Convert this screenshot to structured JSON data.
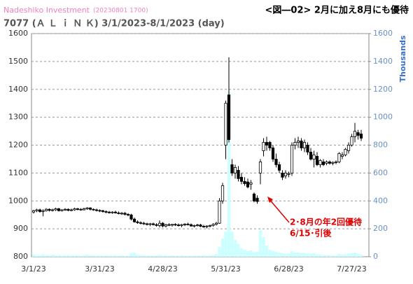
{
  "chart_data": {
    "type": "candlestick",
    "source": "Nadeshiko Investment",
    "timestamp": "(20230801 1700)",
    "title": "<図―02> 2月に加え8月にも優待",
    "subtitle": "7077 (Ａ Ｌ ｉ Ｎ Ｋ) 3/1/2023-8/1/2023 (day)",
    "y2_label": "Thousands",
    "annotation": [
      "2･8月の年2回優待",
      "6/15･引後"
    ],
    "grid": true,
    "ylim": [
      800,
      1600
    ],
    "yticks": [
      800,
      900,
      1000,
      1100,
      1200,
      1300,
      1400,
      1500,
      1600
    ],
    "y2lim": [
      0,
      1600
    ],
    "y2ticks": [
      0,
      200,
      400,
      600,
      800,
      1000,
      1200,
      1400,
      1600
    ],
    "categories": [
      "3/1/23",
      null,
      null,
      null,
      null,
      null,
      null,
      null,
      null,
      null,
      null,
      null,
      null,
      null,
      null,
      null,
      null,
      null,
      null,
      null,
      null,
      "3/31/23",
      null,
      null,
      null,
      null,
      null,
      null,
      null,
      null,
      null,
      null,
      null,
      null,
      null,
      null,
      null,
      null,
      null,
      null,
      null,
      "4/28/23",
      null,
      null,
      null,
      null,
      null,
      null,
      null,
      null,
      null,
      null,
      null,
      null,
      null,
      null,
      null,
      null,
      null,
      null,
      null,
      "5/31/23",
      null,
      null,
      null,
      null,
      null,
      null,
      null,
      null,
      null,
      null,
      null,
      null,
      null,
      null,
      null,
      null,
      null,
      null,
      null,
      "6/28/23",
      null,
      null,
      null,
      null,
      null,
      null,
      null,
      null,
      null,
      null,
      null,
      null,
      null,
      null,
      null,
      null,
      null,
      null,
      null,
      "7/27/23",
      null,
      null,
      null
    ],
    "series": [
      {
        "color": "#000000",
        "values": [
          [
            960,
            968,
            955,
            965
          ],
          [
            965,
            972,
            960,
            968
          ],
          [
            968,
            972,
            958,
            962
          ],
          [
            962,
            970,
            945,
            965
          ],
          [
            965,
            974,
            962,
            970
          ],
          [
            970,
            973,
            962,
            966
          ],
          [
            966,
            972,
            962,
            968
          ],
          [
            968,
            976,
            964,
            972
          ],
          [
            972,
            975,
            962,
            965
          ],
          [
            965,
            971,
            962,
            968
          ],
          [
            968,
            974,
            965,
            970
          ],
          [
            970,
            973,
            963,
            966
          ],
          [
            966,
            972,
            963,
            968
          ],
          [
            968,
            976,
            965,
            972
          ],
          [
            972,
            975,
            966,
            970
          ],
          [
            970,
            974,
            965,
            968
          ],
          [
            968,
            976,
            966,
            972
          ],
          [
            972,
            978,
            968,
            975
          ],
          [
            975,
            977,
            966,
            970
          ],
          [
            970,
            973,
            965,
            968
          ],
          [
            968,
            972,
            962,
            966
          ],
          [
            966,
            970,
            960,
            965
          ],
          [
            965,
            968,
            958,
            962
          ],
          [
            962,
            966,
            956,
            960
          ],
          [
            960,
            964,
            955,
            958
          ],
          [
            958,
            963,
            954,
            960
          ],
          [
            960,
            965,
            955,
            957
          ],
          [
            957,
            962,
            952,
            955
          ],
          [
            955,
            960,
            950,
            956
          ],
          [
            956,
            960,
            948,
            952
          ],
          [
            952,
            956,
            945,
            950
          ],
          [
            950,
            954,
            930,
            935
          ],
          [
            935,
            940,
            922,
            925
          ],
          [
            925,
            930,
            918,
            922
          ],
          [
            922,
            927,
            916,
            920
          ],
          [
            920,
            925,
            914,
            918
          ],
          [
            918,
            922,
            912,
            916
          ],
          [
            916,
            921,
            910,
            918
          ],
          [
            918,
            922,
            912,
            915
          ],
          [
            915,
            920,
            908,
            912
          ],
          [
            912,
            930,
            905,
            920
          ],
          [
            920,
            924,
            905,
            910
          ],
          [
            910,
            918,
            905,
            915
          ],
          [
            915,
            920,
            910,
            913
          ],
          [
            913,
            918,
            908,
            916
          ],
          [
            916,
            920,
            910,
            914
          ],
          [
            914,
            919,
            908,
            912
          ],
          [
            912,
            918,
            906,
            915
          ],
          [
            915,
            920,
            910,
            917
          ],
          [
            917,
            922,
            912,
            915
          ],
          [
            915,
            919,
            908,
            910
          ],
          [
            910,
            915,
            905,
            912
          ],
          [
            912,
            918,
            908,
            914
          ],
          [
            914,
            918,
            906,
            909
          ],
          [
            909,
            914,
            904,
            908
          ],
          [
            908,
            913,
            902,
            910
          ],
          [
            910,
            915,
            905,
            912
          ],
          [
            912,
            920,
            908,
            916
          ],
          [
            916,
            925,
            912,
            920
          ],
          [
            920,
            1010,
            918,
            1000
          ],
          [
            1000,
            1065,
            990,
            1055
          ],
          [
            1200,
            1360,
            1150,
            1350
          ],
          [
            1380,
            1515,
            1210,
            1220
          ],
          [
            1130,
            1150,
            1090,
            1100
          ],
          [
            1100,
            1130,
            1080,
            1120
          ],
          [
            1110,
            1125,
            1070,
            1080
          ],
          [
            1085,
            1100,
            1060,
            1070
          ],
          [
            1070,
            1085,
            1055,
            1062
          ],
          [
            1068,
            1080,
            1045,
            1050
          ],
          [
            1060,
            1075,
            1040,
            1065
          ],
          [
            1025,
            1030,
            995,
            1000
          ],
          [
            1010,
            1020,
            990,
            998
          ],
          [
            1100,
            1150,
            1060,
            1140
          ],
          [
            1180,
            1225,
            1160,
            1210
          ],
          [
            1210,
            1230,
            1180,
            1200
          ],
          [
            1210,
            1215,
            1180,
            1190
          ],
          [
            1190,
            1200,
            1140,
            1150
          ],
          [
            1150,
            1170,
            1120,
            1130
          ],
          [
            1130,
            1140,
            1100,
            1110
          ],
          [
            1100,
            1110,
            1075,
            1085
          ],
          [
            1090,
            1110,
            1080,
            1100
          ],
          [
            1095,
            1105,
            1085,
            1098
          ],
          [
            1100,
            1210,
            1090,
            1200
          ],
          [
            1200,
            1225,
            1185,
            1210
          ],
          [
            1210,
            1230,
            1190,
            1215
          ],
          [
            1215,
            1225,
            1180,
            1190
          ],
          [
            1190,
            1220,
            1175,
            1210
          ],
          [
            1200,
            1210,
            1165,
            1175
          ],
          [
            1175,
            1190,
            1145,
            1150
          ],
          [
            1150,
            1180,
            1120,
            1165
          ],
          [
            1160,
            1175,
            1125,
            1130
          ],
          [
            1130,
            1150,
            1120,
            1145
          ],
          [
            1140,
            1150,
            1125,
            1130
          ],
          [
            1135,
            1145,
            1128,
            1140
          ],
          [
            1140,
            1145,
            1130,
            1135
          ],
          [
            1135,
            1142,
            1128,
            1138
          ],
          [
            1138,
            1145,
            1132,
            1140
          ],
          [
            1140,
            1175,
            1135,
            1170
          ],
          [
            1160,
            1175,
            1150,
            1165
          ],
          [
            1165,
            1190,
            1160,
            1185
          ],
          [
            1180,
            1210,
            1170,
            1200
          ],
          [
            1200,
            1240,
            1195,
            1230
          ],
          [
            1230,
            1280,
            1210,
            1250
          ],
          [
            1245,
            1255,
            1220,
            1235
          ],
          [
            1240,
            1255,
            1215,
            1225
          ]
        ]
      },
      {
        "axis": "y2",
        "color": "#ccffff",
        "values": [
          15,
          12,
          10,
          18,
          12,
          10,
          14,
          10,
          12,
          8,
          10,
          12,
          9,
          11,
          10,
          8,
          12,
          14,
          10,
          9,
          8,
          10,
          10,
          9,
          8,
          10,
          9,
          8,
          10,
          9,
          8,
          25,
          30,
          15,
          12,
          10,
          9,
          10,
          8,
          9,
          14,
          10,
          9,
          8,
          10,
          9,
          8,
          10,
          9,
          8,
          7,
          9,
          8,
          9,
          10,
          8,
          9,
          12,
          20,
          70,
          130,
          180,
          1180,
          180,
          120,
          90,
          60,
          50,
          40,
          45,
          30,
          35,
          190,
          140,
          80,
          50,
          40,
          35,
          30,
          25,
          20,
          22,
          40,
          30,
          30,
          25,
          28,
          22,
          20,
          25,
          18,
          15,
          12,
          10,
          10,
          9,
          10,
          20,
          15,
          18,
          22,
          25,
          30,
          20,
          15
        ]
      }
    ]
  }
}
